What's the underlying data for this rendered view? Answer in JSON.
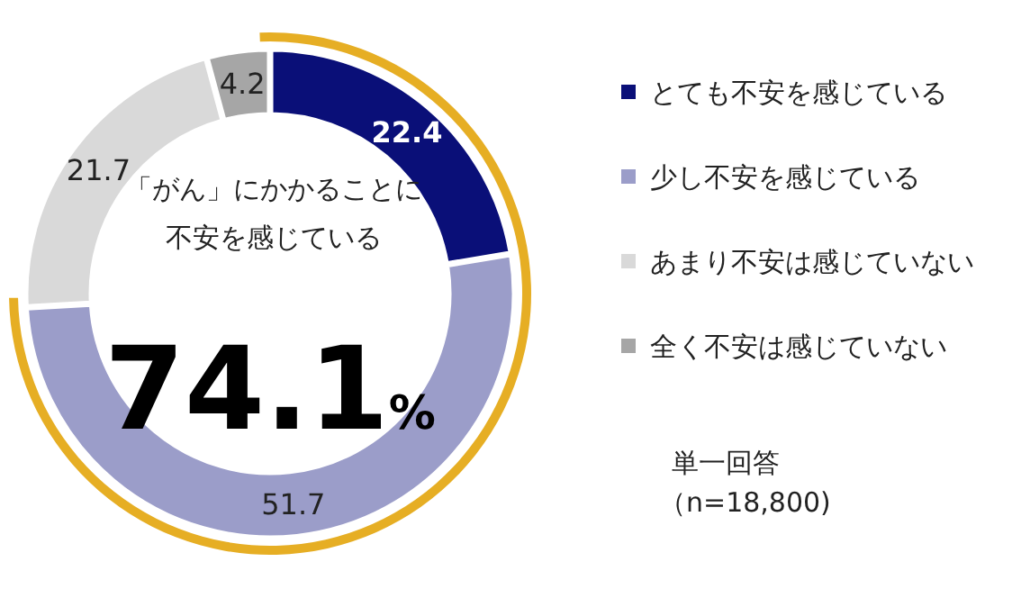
{
  "chart_data": {
    "type": "donut",
    "categories": [
      "とても不安を感じている",
      "少し不安を感じている",
      "あまり不安は感じていない",
      "全く不安は感じていない"
    ],
    "values": [
      22.4,
      51.7,
      21.7,
      4.2
    ],
    "colors": [
      "#0a0f78",
      "#9b9dc9",
      "#d9d9d9",
      "#a6a6a6"
    ],
    "data_labels": true,
    "legend": "right",
    "annotations": [
      "「がん」にかかることに",
      "不安を感じている",
      "74.1%",
      "単一回答",
      "（n=18,800)"
    ]
  }
}
